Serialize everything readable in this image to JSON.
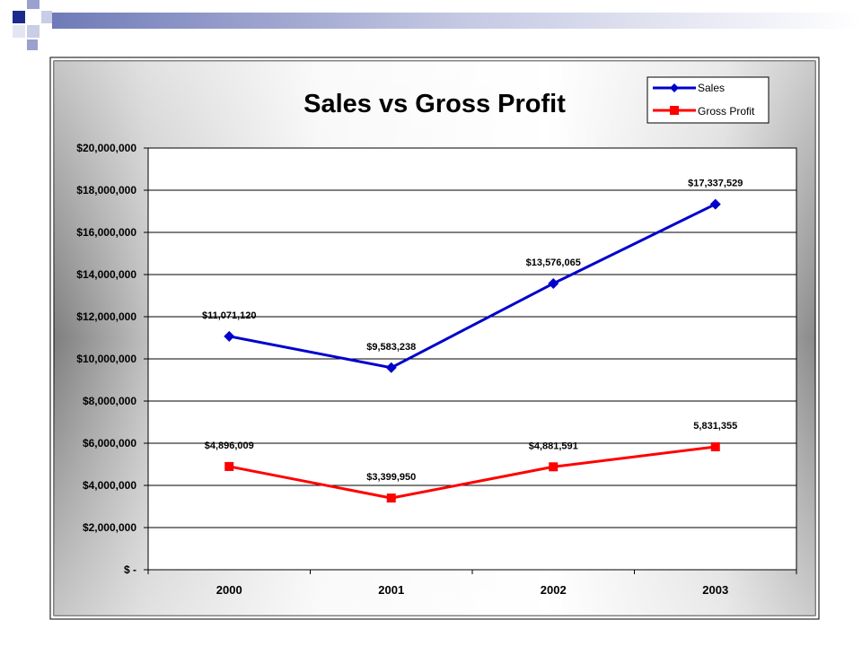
{
  "chart_data": {
    "type": "line",
    "title": "Sales vs Gross Profit",
    "categories": [
      "2000",
      "2001",
      "2002",
      "2003"
    ],
    "ylim": [
      0,
      20000000
    ],
    "yticks": [
      {
        "value": 0,
        "label": "$ -"
      },
      {
        "value": 2000000,
        "label": "$2,000,000"
      },
      {
        "value": 4000000,
        "label": "$4,000,000"
      },
      {
        "value": 6000000,
        "label": "$6,000,000"
      },
      {
        "value": 8000000,
        "label": "$8,000,000"
      },
      {
        "value": 10000000,
        "label": "$10,000,000"
      },
      {
        "value": 12000000,
        "label": "$12,000,000"
      },
      {
        "value": 14000000,
        "label": "$14,000,000"
      },
      {
        "value": 16000000,
        "label": "$16,000,000"
      },
      {
        "value": 18000000,
        "label": "$18,000,000"
      },
      {
        "value": 20000000,
        "label": "$20,000,000"
      }
    ],
    "grid": true,
    "legend": "top-right",
    "series": [
      {
        "name": "Sales",
        "color": "#0000cc",
        "marker": "diamond",
        "values": [
          11071120,
          9583238,
          13576065,
          17337529
        ],
        "labels": [
          "$11,071,120",
          "$9,583,238",
          "$13,576,065",
          "$17,337,529"
        ]
      },
      {
        "name": "Gross Profit",
        "color": "#ff0000",
        "marker": "square",
        "values": [
          4896009,
          3399950,
          4881591,
          5831355
        ],
        "labels": [
          "$4,896,009",
          "$3,399,950",
          "$4,881,591",
          "5,831,355"
        ]
      }
    ]
  }
}
